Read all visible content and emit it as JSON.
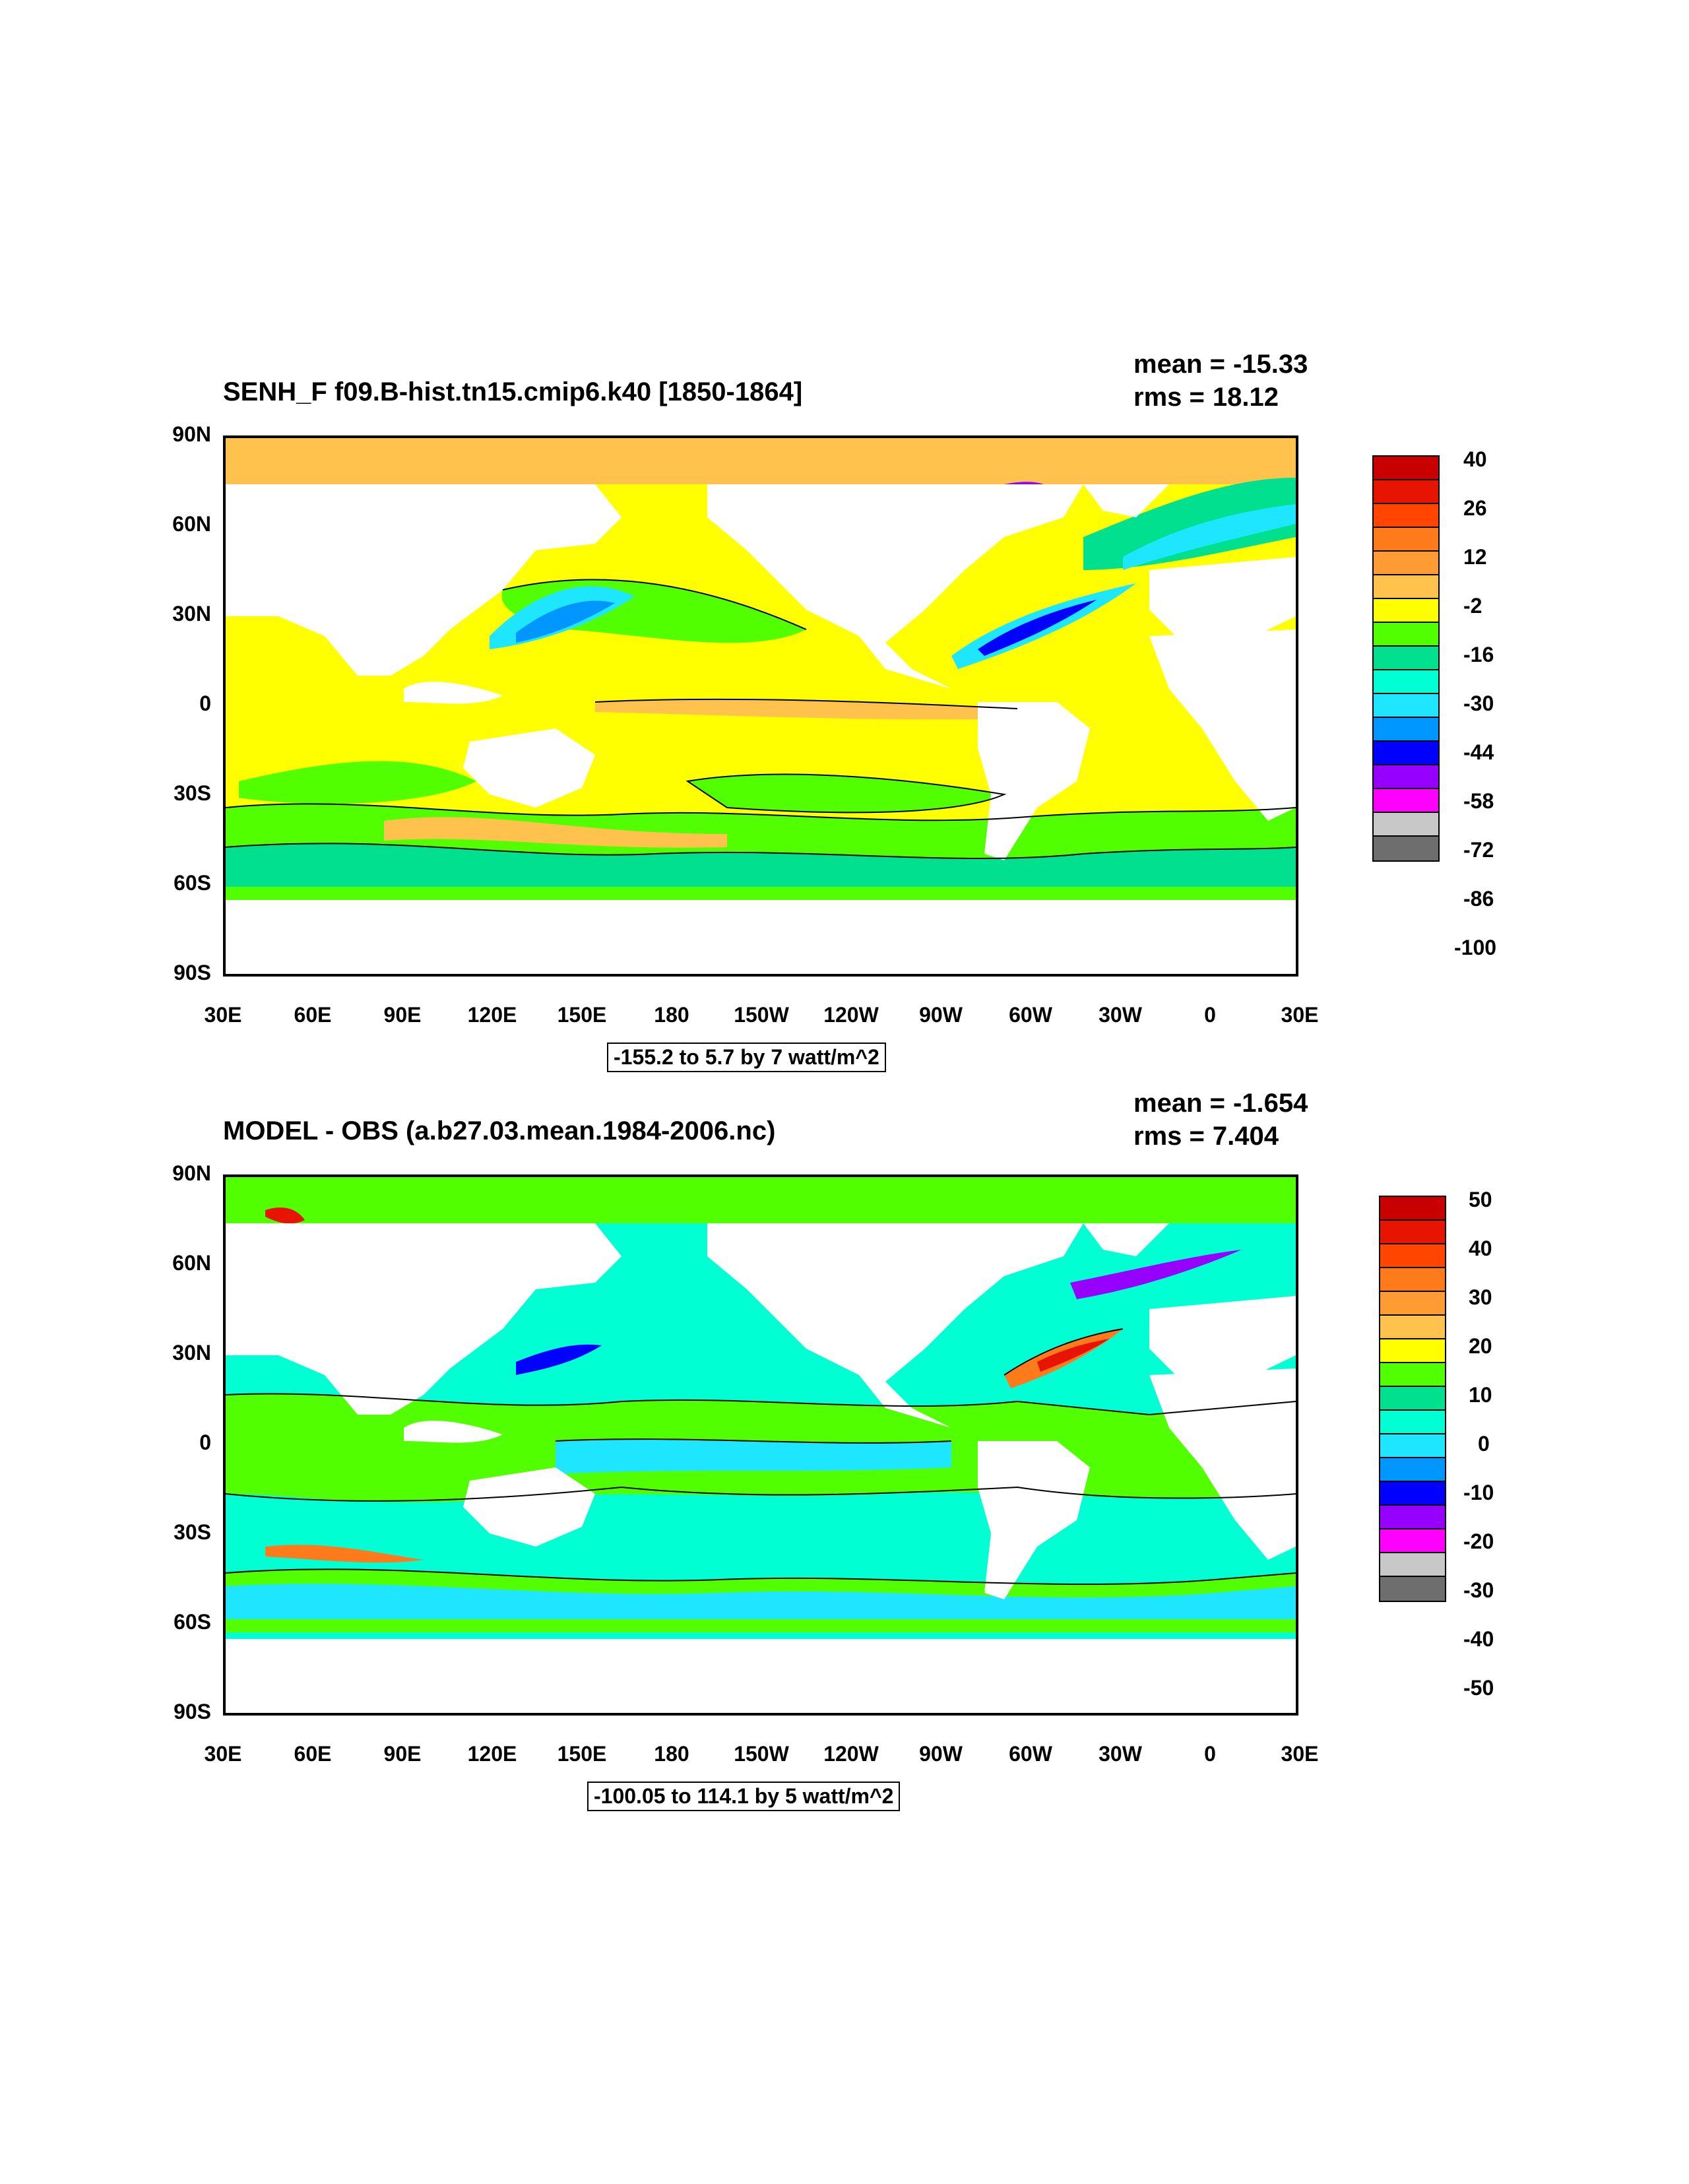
{
  "panels": [
    {
      "title": "SENH_F f09.B-hist.tn15.cmip6.k40 [1850-1864]",
      "mean_label": "mean =",
      "mean_value": "-15.33",
      "rms_label": "rms =",
      "rms_value": "18.12",
      "range_text": "-155.2 to 5.7 by 7 watt/m^2",
      "colorbar": {
        "colors": [
          "#c80000",
          "#e61400",
          "#ff4500",
          "#ff7a1a",
          "#ff9b33",
          "#ffc24d",
          "#ffff00",
          "#51ff00",
          "#00e08f",
          "#00ffd2",
          "#1ee6ff",
          "#0096ff",
          "#0000ff",
          "#9600ff",
          "#ff00ff",
          "#c8c8c8",
          "#6e6e6e"
        ],
        "labels": [
          "40",
          "26",
          "12",
          "-2",
          "-16",
          "-30",
          "-44",
          "-58",
          "-72",
          "-86",
          "-100"
        ]
      },
      "map_colors": {
        "ocean": "#ffff00",
        "arctic": "#ffc24d",
        "green": "#51ff00",
        "teal": "#00e08f",
        "cyan": "#1ee6ff",
        "blue": "#0096ff",
        "purple": "#9600ff",
        "orange": "#ffc24d"
      }
    },
    {
      "title": "MODEL - OBS (a.b27.03.mean.1984-2006.nc)",
      "mean_label": "mean =",
      "mean_value": "-1.654",
      "rms_label": "rms =",
      "rms_value": "7.404",
      "range_text": "-100.05 to 114.1 by 5 watt/m^2",
      "colorbar": {
        "colors": [
          "#c80000",
          "#e61400",
          "#ff4500",
          "#ff7a1a",
          "#ff9b33",
          "#ffc24d",
          "#ffff00",
          "#51ff00",
          "#00e08f",
          "#00ffd2",
          "#1ee6ff",
          "#0096ff",
          "#0000ff",
          "#9600ff",
          "#ff00ff",
          "#c8c8c8",
          "#6e6e6e"
        ],
        "labels": [
          "50",
          "40",
          "30",
          "20",
          "10",
          "0",
          "-10",
          "-20",
          "-30",
          "-40",
          "-50"
        ]
      },
      "map_colors": {
        "ocean": "#00ffd2",
        "arctic": "#51ff00",
        "green": "#51ff00",
        "teal": "#00ffd2",
        "cyan": "#1ee6ff",
        "blue": "#0096ff",
        "purple": "#9600ff",
        "orange": "#ff7a1a"
      }
    }
  ],
  "axes": {
    "lat_labels": [
      "90N",
      "60N",
      "30N",
      "0",
      "30S",
      "60S",
      "90S"
    ],
    "lon_labels": [
      "30E",
      "60E",
      "90E",
      "120E",
      "150E",
      "180",
      "150W",
      "120W",
      "90W",
      "60W",
      "30W",
      "0",
      "30E"
    ]
  }
}
